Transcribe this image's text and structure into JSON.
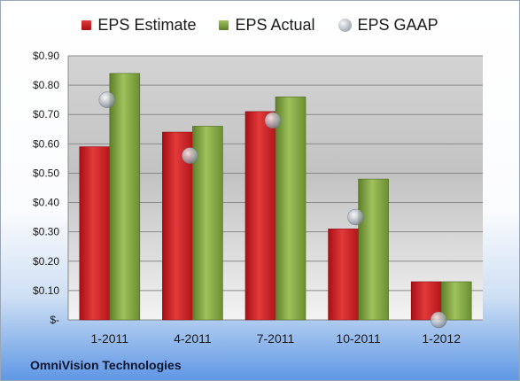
{
  "company": "OmniVision Technologies",
  "chart_data": {
    "type": "bar",
    "categories": [
      "1-2011",
      "4-2011",
      "7-2011",
      "10-2011",
      "1-2012"
    ],
    "series": [
      {
        "name": "EPS Estimate",
        "kind": "bar",
        "color": "#c8181e",
        "values": [
          0.59,
          0.64,
          0.71,
          0.31,
          0.13
        ]
      },
      {
        "name": "EPS Actual",
        "kind": "bar",
        "color": "#7ea140",
        "values": [
          0.84,
          0.66,
          0.76,
          0.48,
          0.13
        ]
      },
      {
        "name": "EPS GAAP",
        "kind": "marker",
        "color": "#b5bcc3",
        "values": [
          0.75,
          0.56,
          0.68,
          0.35,
          0.0
        ]
      }
    ],
    "ylim": [
      0,
      0.9
    ],
    "yticks": [
      0,
      0.1,
      0.2,
      0.3,
      0.4,
      0.5,
      0.6,
      0.7,
      0.8,
      0.9
    ],
    "ytick_labels": [
      "$-",
      "$0.10",
      "$0.20",
      "$0.30",
      "$0.40",
      "$0.50",
      "$0.60",
      "$0.70",
      "$0.80",
      "$0.90"
    ],
    "grid": true,
    "legend_position": "top-center"
  }
}
